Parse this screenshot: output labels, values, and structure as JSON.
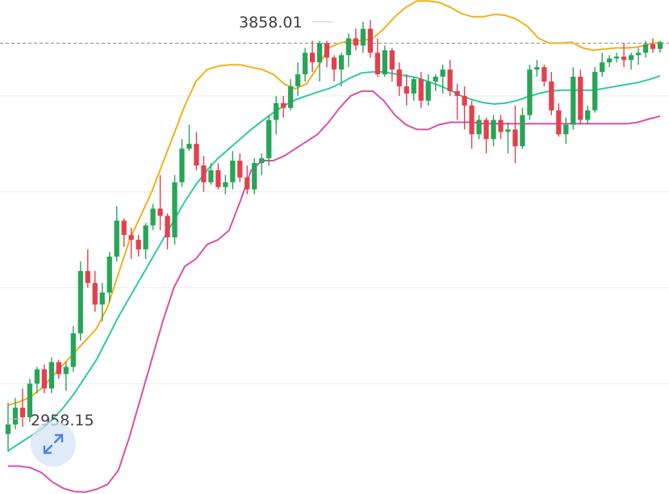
{
  "chart_data": {
    "type": "candlestick",
    "title": "",
    "xlabel": "",
    "ylabel": "",
    "ylim": [
      2870,
      3900
    ],
    "grid": true,
    "annotations": {
      "max_label": "3858.01",
      "min_label": "2958.15"
    },
    "reference_line": {
      "value": 3810,
      "style": "dashed"
    },
    "colors": {
      "up": "#27a557",
      "down": "#e3404e",
      "upper_band": "#efb21c",
      "middle_band": "#2fc9a5",
      "lower_band": "#d94fae",
      "grid": "#ececec"
    },
    "candles": [
      [
        2995,
        3060,
        2958.15,
        3015
      ],
      [
        3015,
        3070,
        3005,
        3050
      ],
      [
        3050,
        3090,
        3010,
        3030
      ],
      [
        3030,
        3110,
        3020,
        3100
      ],
      [
        3100,
        3135,
        3080,
        3130
      ],
      [
        3130,
        3140,
        3080,
        3090
      ],
      [
        3090,
        3155,
        3080,
        3145
      ],
      [
        3145,
        3150,
        3110,
        3120
      ],
      [
        3120,
        3145,
        3085,
        3135
      ],
      [
        3135,
        3220,
        3125,
        3205
      ],
      [
        3205,
        3355,
        3190,
        3335
      ],
      [
        3335,
        3380,
        3300,
        3310
      ],
      [
        3310,
        3335,
        3250,
        3265
      ],
      [
        3265,
        3310,
        3230,
        3290
      ],
      [
        3290,
        3375,
        3270,
        3365
      ],
      [
        3365,
        3470,
        3355,
        3440
      ],
      [
        3440,
        3445,
        3385,
        3410
      ],
      [
        3410,
        3425,
        3360,
        3400
      ],
      [
        3400,
        3410,
        3365,
        3380
      ],
      [
        3380,
        3435,
        3360,
        3430
      ],
      [
        3430,
        3475,
        3420,
        3465
      ],
      [
        3465,
        3535,
        3420,
        3450
      ],
      [
        3450,
        3455,
        3380,
        3405
      ],
      [
        3405,
        3535,
        3390,
        3520
      ],
      [
        3520,
        3610,
        3510,
        3590
      ],
      [
        3590,
        3640,
        3585,
        3600
      ],
      [
        3600,
        3625,
        3545,
        3555
      ],
      [
        3555,
        3575,
        3500,
        3520
      ],
      [
        3520,
        3560,
        3515,
        3545
      ],
      [
        3545,
        3560,
        3505,
        3510
      ],
      [
        3510,
        3535,
        3495,
        3520
      ],
      [
        3520,
        3585,
        3505,
        3565
      ],
      [
        3565,
        3580,
        3520,
        3530
      ],
      [
        3530,
        3555,
        3495,
        3505
      ],
      [
        3505,
        3570,
        3495,
        3560
      ],
      [
        3560,
        3580,
        3535,
        3570
      ],
      [
        3570,
        3660,
        3555,
        3650
      ],
      [
        3650,
        3700,
        3620,
        3685
      ],
      [
        3685,
        3700,
        3655,
        3675
      ],
      [
        3675,
        3735,
        3670,
        3720
      ],
      [
        3720,
        3770,
        3700,
        3745
      ],
      [
        3745,
        3800,
        3730,
        3790
      ],
      [
        3790,
        3815,
        3750,
        3770
      ],
      [
        3770,
        3815,
        3730,
        3810
      ],
      [
        3810,
        3815,
        3760,
        3780
      ],
      [
        3780,
        3785,
        3730,
        3755
      ],
      [
        3755,
        3790,
        3720,
        3785
      ],
      [
        3785,
        3830,
        3760,
        3820
      ],
      [
        3820,
        3840,
        3795,
        3805
      ],
      [
        3805,
        3855,
        3790,
        3840
      ],
      [
        3840,
        3858.01,
        3780,
        3790
      ],
      [
        3790,
        3820,
        3740,
        3745
      ],
      [
        3745,
        3805,
        3740,
        3795
      ],
      [
        3795,
        3800,
        3730,
        3755
      ],
      [
        3755,
        3770,
        3700,
        3720
      ],
      [
        3720,
        3745,
        3680,
        3705
      ],
      [
        3705,
        3740,
        3690,
        3735
      ],
      [
        3735,
        3750,
        3675,
        3690
      ],
      [
        3690,
        3745,
        3680,
        3730
      ],
      [
        3730,
        3745,
        3710,
        3740
      ],
      [
        3740,
        3765,
        3705,
        3755
      ],
      [
        3755,
        3775,
        3700,
        3710
      ],
      [
        3710,
        3725,
        3650,
        3700
      ],
      [
        3700,
        3720,
        3630,
        3680
      ],
      [
        3680,
        3690,
        3590,
        3620
      ],
      [
        3620,
        3660,
        3610,
        3650
      ],
      [
        3650,
        3655,
        3580,
        3610
      ],
      [
        3610,
        3660,
        3595,
        3650
      ],
      [
        3650,
        3660,
        3610,
        3625
      ],
      [
        3625,
        3645,
        3580,
        3630
      ],
      [
        3630,
        3680,
        3560,
        3595
      ],
      [
        3595,
        3675,
        3590,
        3660
      ],
      [
        3660,
        3765,
        3650,
        3755
      ],
      [
        3755,
        3775,
        3740,
        3760
      ],
      [
        3760,
        3765,
        3720,
        3730
      ],
      [
        3730,
        3750,
        3660,
        3670
      ],
      [
        3670,
        3685,
        3615,
        3620
      ],
      [
        3620,
        3655,
        3600,
        3640
      ],
      [
        3640,
        3760,
        3630,
        3740
      ],
      [
        3740,
        3755,
        3640,
        3650
      ],
      [
        3650,
        3680,
        3640,
        3670
      ],
      [
        3670,
        3760,
        3665,
        3750
      ],
      [
        3750,
        3790,
        3740,
        3770
      ],
      [
        3770,
        3785,
        3760,
        3778
      ],
      [
        3778,
        3790,
        3770,
        3782
      ],
      [
        3782,
        3810,
        3760,
        3775
      ],
      [
        3775,
        3790,
        3755,
        3785
      ],
      [
        3785,
        3800,
        3765,
        3790
      ],
      [
        3790,
        3815,
        3780,
        3808
      ],
      [
        3808,
        3820,
        3790,
        3798
      ],
      [
        3798,
        3815,
        3790,
        3812
      ]
    ],
    "upper_band": [
      3055,
      3062,
      3072,
      3090,
      3115,
      3140,
      3165,
      3190,
      3215,
      3260,
      3330,
      3400,
      3450,
      3500,
      3560,
      3620,
      3680,
      3730,
      3755,
      3762,
      3765,
      3765,
      3760,
      3755,
      3745,
      3725,
      3715,
      3725,
      3760,
      3800,
      3810,
      3815,
      3815,
      3820,
      3840,
      3865,
      3885,
      3898,
      3898,
      3895,
      3885,
      3872,
      3865,
      3865,
      3870,
      3868,
      3860,
      3845,
      3820,
      3810,
      3810,
      3812,
      3800,
      3795,
      3798,
      3800,
      3800,
      3802,
      3808,
      3812
    ],
    "middle_band": [
      2960,
      2975,
      2990,
      3005,
      3025,
      3050,
      3080,
      3115,
      3150,
      3195,
      3240,
      3280,
      3320,
      3360,
      3400,
      3440,
      3480,
      3515,
      3545,
      3570,
      3590,
      3610,
      3630,
      3648,
      3665,
      3680,
      3692,
      3700,
      3708,
      3715,
      3725,
      3738,
      3748,
      3750,
      3750,
      3746,
      3742,
      3738,
      3730,
      3722,
      3712,
      3700,
      3692,
      3686,
      3683,
      3685,
      3690,
      3698,
      3705,
      3710,
      3712,
      3712,
      3712,
      3712,
      3716,
      3720,
      3724,
      3728,
      3734,
      3742
    ],
    "lower_band": [
      2928,
      2928,
      2925,
      2915,
      2895,
      2882,
      2875,
      2874,
      2880,
      2890,
      2920,
      2990,
      3070,
      3150,
      3230,
      3300,
      3345,
      3360,
      3390,
      3400,
      3420,
      3480,
      3545,
      3565,
      3565,
      3575,
      3590,
      3605,
      3620,
      3645,
      3675,
      3700,
      3710,
      3710,
      3690,
      3660,
      3640,
      3630,
      3630,
      3640,
      3645,
      3645,
      3645,
      3642,
      3642,
      3642,
      3642,
      3642,
      3642,
      3642,
      3642,
      3642,
      3642,
      3642,
      3642,
      3642,
      3642,
      3645,
      3652,
      3658
    ]
  },
  "controls": {
    "expand_icon": "expand-arrows-icon"
  }
}
